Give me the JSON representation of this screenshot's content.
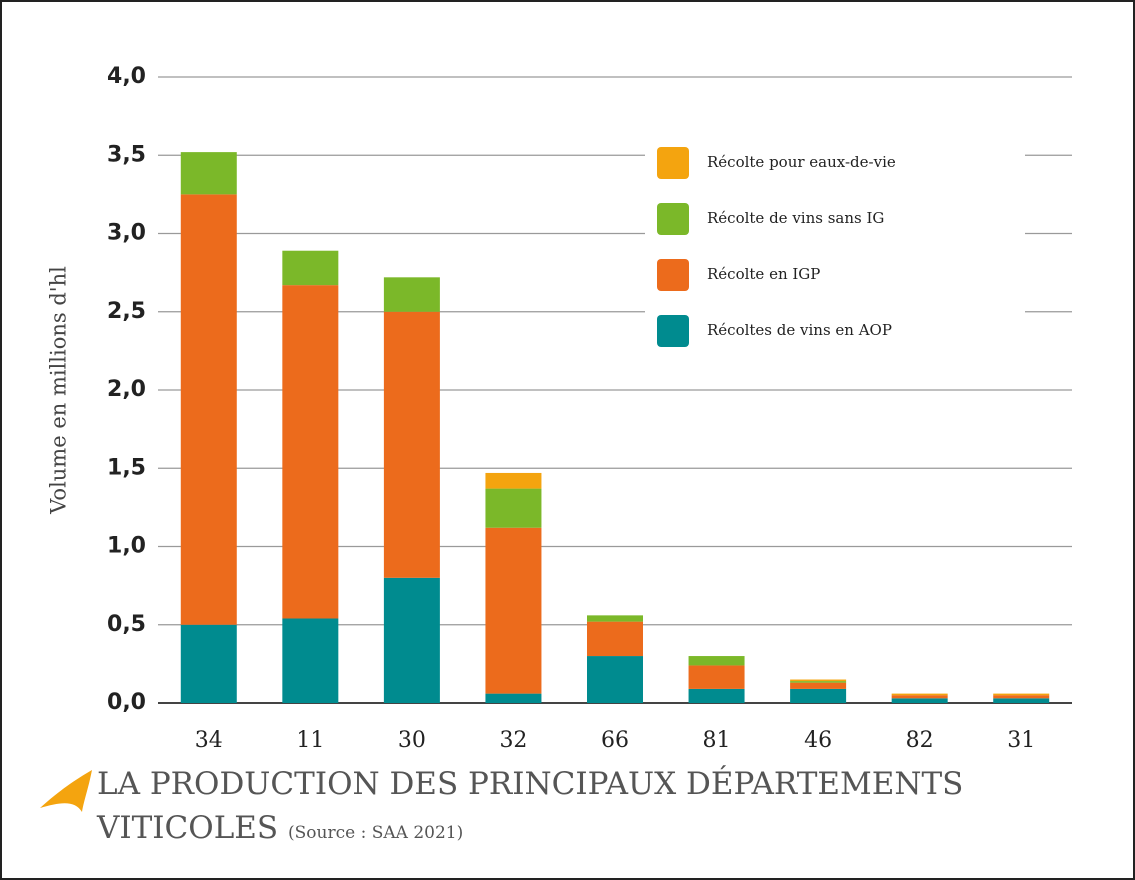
{
  "chart_data": {
    "type": "stacked_bar",
    "title": "LA PRODUCTION DES PRINCIPAUX DÉPARTEMENTS VITICOLES",
    "subtitle": "(Source : SAA 2021)",
    "y_label": "Volume en millions d'hl",
    "categories": [
      "34",
      "11",
      "30",
      "32",
      "66",
      "81",
      "46",
      "82",
      "31"
    ],
    "series": [
      {
        "name": "Récoltes de vins en AOP",
        "color": "#008b8f",
        "values": [
          0.5,
          0.54,
          0.8,
          0.06,
          0.3,
          0.09,
          0.09,
          0.03,
          0.03
        ]
      },
      {
        "name": "Récolte en IGP",
        "color": "#ec6b1c",
        "values": [
          2.75,
          2.13,
          1.7,
          1.06,
          0.22,
          0.15,
          0.04,
          0.02,
          0.02
        ]
      },
      {
        "name": "Récolte de vins sans IG",
        "color": "#7bb829",
        "values": [
          0.27,
          0.22,
          0.22,
          0.25,
          0.04,
          0.06,
          0.01,
          0,
          0
        ]
      },
      {
        "name": "Récolte pour eaux-de-vie",
        "color": "#f4a40f",
        "values": [
          0,
          0,
          0,
          0.1,
          0,
          0,
          0.01,
          0.01,
          0.01
        ]
      }
    ],
    "ylim": [
      0,
      4
    ],
    "yticks": [
      {
        "value": 0,
        "label": "0,0"
      },
      {
        "value": 0.5,
        "label": "0,5"
      },
      {
        "value": 1,
        "label": "1,0"
      },
      {
        "value": 1.5,
        "label": "1,5"
      },
      {
        "value": 2,
        "label": "2,0"
      },
      {
        "value": 2.5,
        "label": "2,5"
      },
      {
        "value": 3,
        "label": "3,0"
      },
      {
        "value": 3.5,
        "label": "3,5"
      },
      {
        "value": 4,
        "label": "4,0"
      }
    ],
    "grid": true,
    "legend": "top-right"
  }
}
